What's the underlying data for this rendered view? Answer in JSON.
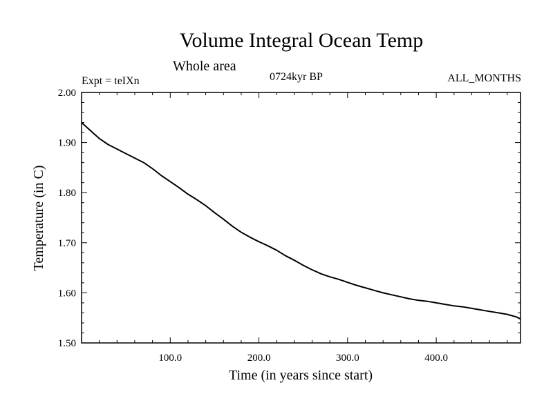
{
  "header": {
    "title": "Volume Integral Ocean Temp",
    "subtitle": "Whole area",
    "experiment": "Expt = teIXn",
    "period": "0724kyr BP",
    "months": "ALL_MONTHS"
  },
  "chart_data": {
    "type": "line",
    "title": "Volume Integral Ocean Temp",
    "subtitle": "Whole area",
    "xlabel": "Time (in years since start)",
    "ylabel": "Temperature (in C)",
    "xlim": [
      0,
      495
    ],
    "ylim": [
      1.5,
      2.0
    ],
    "xticks": [
      100,
      200,
      300,
      400
    ],
    "xtick_labels": [
      "100.0",
      "200.0",
      "300.0",
      "400.0"
    ],
    "yticks": [
      1.5,
      1.6,
      1.7,
      1.8,
      1.9,
      2.0
    ],
    "ytick_labels": [
      "1.50",
      "1.60",
      "1.70",
      "1.80",
      "1.90",
      "2.00"
    ],
    "grid": false,
    "series": [
      {
        "color": "#000000",
        "x": [
          0,
          10,
          20,
          30,
          40,
          50,
          60,
          70,
          80,
          90,
          100,
          110,
          120,
          130,
          140,
          150,
          160,
          170,
          180,
          190,
          200,
          210,
          220,
          230,
          240,
          250,
          260,
          270,
          280,
          290,
          300,
          310,
          320,
          330,
          340,
          350,
          360,
          370,
          380,
          390,
          400,
          410,
          420,
          430,
          440,
          450,
          460,
          470,
          480,
          490,
          495
        ],
        "y": [
          1.94,
          1.924,
          1.908,
          1.896,
          1.887,
          1.878,
          1.869,
          1.86,
          1.848,
          1.834,
          1.822,
          1.81,
          1.797,
          1.786,
          1.774,
          1.76,
          1.747,
          1.733,
          1.721,
          1.711,
          1.702,
          1.694,
          1.685,
          1.674,
          1.665,
          1.655,
          1.646,
          1.638,
          1.632,
          1.627,
          1.621,
          1.615,
          1.61,
          1.605,
          1.6,
          1.596,
          1.592,
          1.588,
          1.585,
          1.583,
          1.58,
          1.577,
          1.574,
          1.572,
          1.569,
          1.566,
          1.563,
          1.56,
          1.557,
          1.552,
          1.548
        ]
      }
    ]
  }
}
